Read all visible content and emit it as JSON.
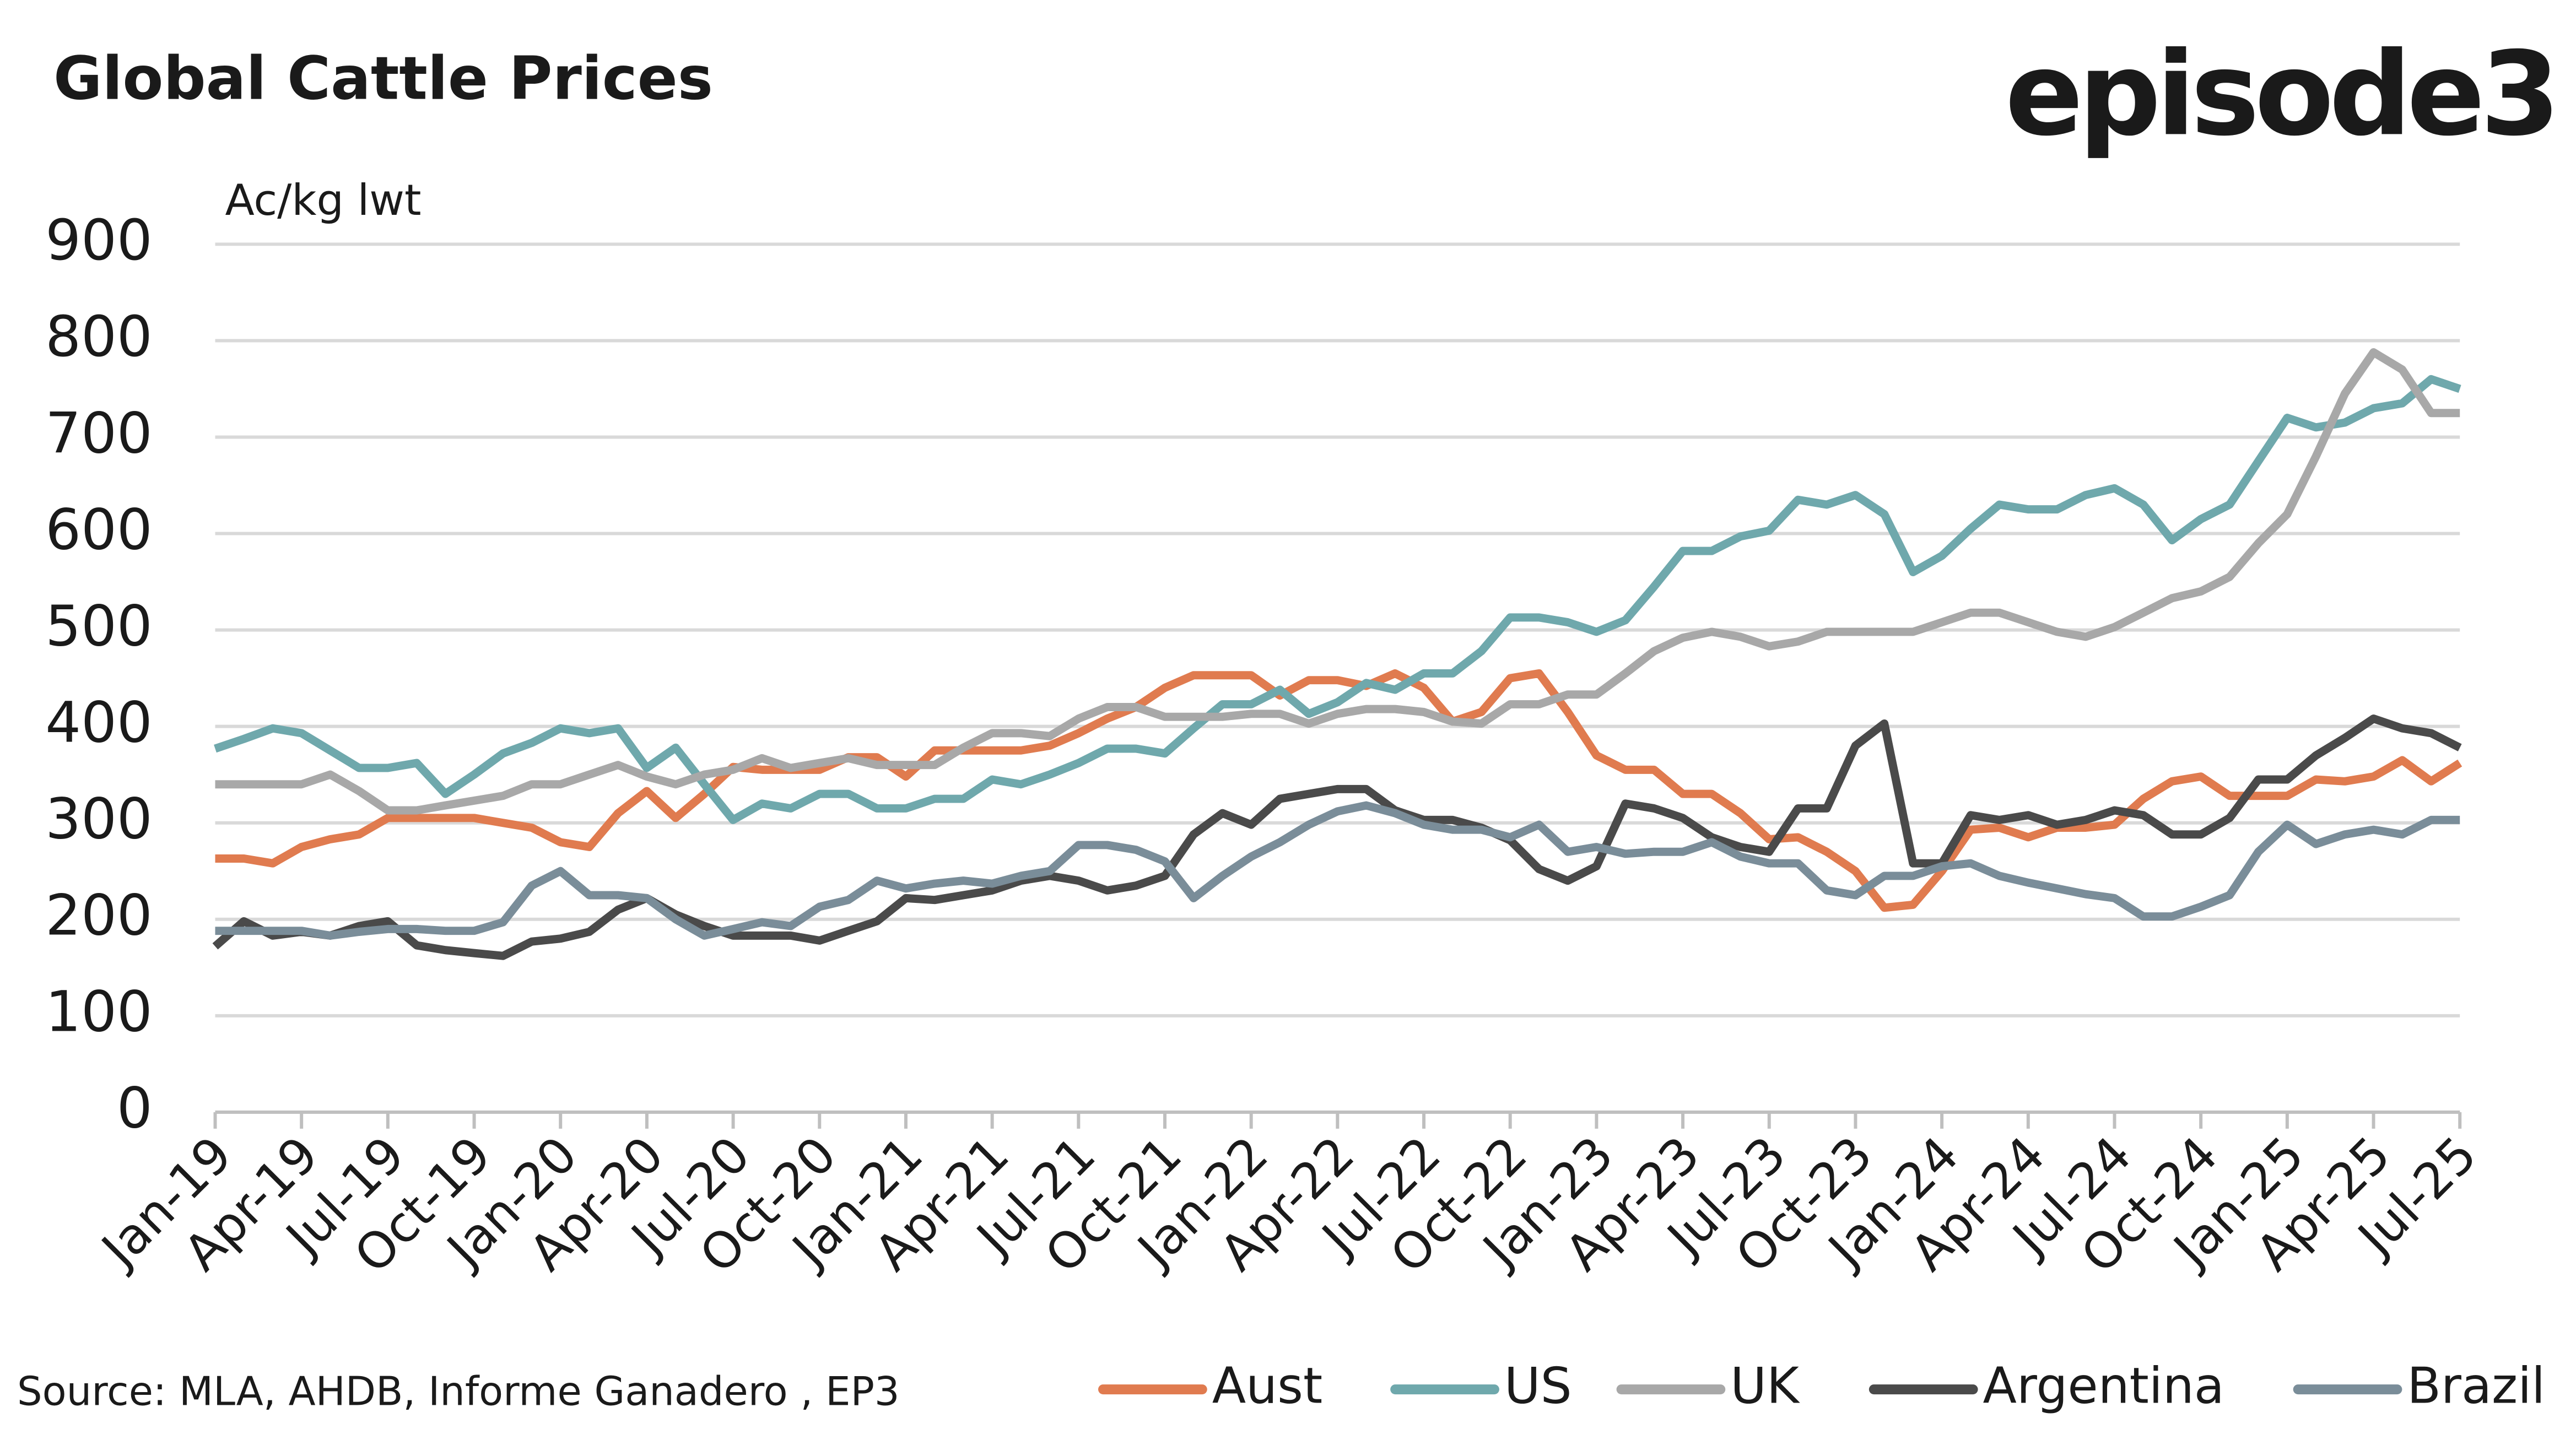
{
  "chart_data": {
    "type": "line",
    "title": "Global Cattle Prices",
    "logo": "episode3",
    "y_label": "Ac/kg lwt",
    "source": "Source:  MLA, AHDB, Informe Ganadero , EP3",
    "categories": [
      "Jan-19",
      null,
      null,
      "Apr-19",
      null,
      null,
      "Jul-19",
      null,
      null,
      "Oct-19",
      null,
      null,
      "Jan-20",
      null,
      null,
      "Apr-20",
      null,
      null,
      "Jul-20",
      null,
      null,
      "Oct-20",
      null,
      null,
      "Jan-21",
      null,
      null,
      "Apr-21",
      null,
      null,
      "Jul-21",
      null,
      null,
      "Oct-21",
      null,
      null,
      "Jan-22",
      null,
      null,
      "Apr-22",
      null,
      null,
      "Jul-22",
      null,
      null,
      "Oct-22",
      null,
      null,
      "Jan-23",
      null,
      null,
      "Apr-23",
      null,
      null,
      "Jul-23",
      null,
      null,
      "Oct-23",
      null,
      null,
      "Jan-24",
      null,
      null,
      "Apr-24",
      null,
      null,
      "Jul-24",
      null,
      null,
      "Oct-24",
      null,
      null,
      "Jan-25",
      null,
      null,
      "Apr-25",
      null,
      null,
      "Jul-25"
    ],
    "series": [
      {
        "name": "Aust",
        "color": "#e07b4f",
        "values": [
          263,
          263,
          258,
          275,
          283,
          288,
          305,
          305,
          305,
          305,
          300,
          295,
          280,
          275,
          310,
          333,
          305,
          330,
          358,
          355,
          355,
          355,
          368,
          368,
          348,
          375,
          375,
          375,
          375,
          380,
          393,
          408,
          420,
          440,
          453,
          453,
          453,
          432,
          448,
          448,
          442,
          455,
          440,
          405,
          415,
          450,
          455,
          415,
          370,
          355,
          355,
          330,
          330,
          310,
          283,
          285,
          270,
          250,
          212,
          215,
          250,
          293,
          295,
          285,
          295,
          295,
          298,
          325,
          343,
          348,
          328,
          328,
          328,
          345,
          343,
          348,
          365,
          343,
          362
        ]
      },
      {
        "name": "US",
        "color": "#6fa8ac",
        "values": [
          377,
          387,
          398,
          393,
          375,
          357,
          357,
          362,
          330,
          350,
          372,
          383,
          398,
          393,
          398,
          357,
          378,
          340,
          303,
          320,
          315,
          330,
          330,
          315,
          315,
          325,
          325,
          345,
          340,
          350,
          362,
          377,
          377,
          372,
          398,
          423,
          423,
          438,
          413,
          425,
          445,
          438,
          455,
          455,
          478,
          513,
          513,
          508,
          498,
          510,
          545,
          582,
          582,
          597,
          603,
          635,
          630,
          640,
          620,
          560,
          577,
          605,
          630,
          625,
          625,
          640,
          647,
          630,
          593,
          615,
          630,
          675,
          720,
          710,
          715,
          730,
          735,
          760,
          750
        ]
      },
      {
        "name": "UK",
        "color": "#a8a8a8",
        "values": [
          340,
          340,
          340,
          340,
          350,
          333,
          313,
          313,
          318,
          323,
          328,
          340,
          340,
          350,
          360,
          348,
          340,
          350,
          355,
          367,
          357,
          362,
          367,
          360,
          360,
          360,
          378,
          393,
          393,
          390,
          408,
          420,
          420,
          410,
          410,
          410,
          413,
          413,
          403,
          413,
          418,
          418,
          415,
          405,
          403,
          423,
          423,
          433,
          433,
          455,
          478,
          492,
          498,
          493,
          483,
          488,
          498,
          498,
          498,
          498,
          508,
          518,
          518,
          508,
          498,
          493,
          503,
          518,
          533,
          540,
          555,
          590,
          620,
          680,
          745,
          788,
          770,
          725,
          725
        ]
      },
      {
        "name": "Argentina",
        "color": "#4a4a4a",
        "values": [
          172,
          198,
          183,
          187,
          183,
          193,
          198,
          173,
          168,
          165,
          162,
          177,
          180,
          187,
          210,
          222,
          205,
          193,
          183,
          183,
          183,
          178,
          188,
          198,
          222,
          220,
          225,
          230,
          240,
          245,
          240,
          230,
          235,
          245,
          288,
          310,
          298,
          325,
          330,
          335,
          335,
          313,
          303,
          303,
          295,
          282,
          252,
          240,
          255,
          320,
          315,
          305,
          285,
          275,
          270,
          315,
          315,
          380,
          403,
          258,
          258,
          308,
          303,
          308,
          298,
          303,
          313,
          308,
          288,
          288,
          305,
          345,
          345,
          370,
          388,
          408,
          398,
          393,
          378
        ]
      },
      {
        "name": "Brazil",
        "color": "#7a8d99",
        "values": [
          188,
          188,
          188,
          188,
          183,
          187,
          190,
          190,
          188,
          188,
          197,
          235,
          250,
          225,
          225,
          222,
          200,
          183,
          190,
          197,
          193,
          213,
          220,
          240,
          232,
          237,
          240,
          237,
          245,
          250,
          277,
          277,
          272,
          260,
          222,
          245,
          265,
          280,
          298,
          312,
          318,
          310,
          298,
          293,
          293,
          285,
          298,
          270,
          275,
          268,
          270,
          270,
          280,
          265,
          258,
          258,
          230,
          225,
          245,
          245,
          255,
          258,
          245,
          238,
          232,
          226,
          222,
          203,
          203,
          213,
          225,
          270,
          298,
          278,
          288,
          293,
          288,
          303,
          303
        ]
      }
    ],
    "ylim": [
      0,
      900
    ],
    "yticks": [
      0,
      100,
      200,
      300,
      400,
      500,
      600,
      700,
      800,
      900
    ],
    "grid": true
  }
}
